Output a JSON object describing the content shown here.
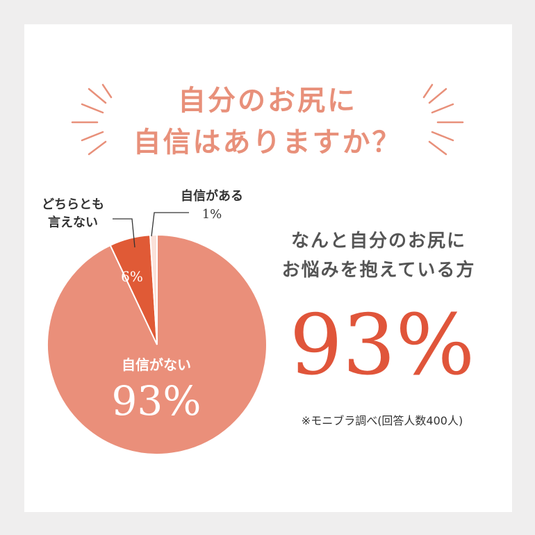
{
  "title": {
    "line1": "自分のお尻に",
    "line2": "自信はありますか？"
  },
  "headline": {
    "line1": "なんと自分のお尻に",
    "line2": "お悩みを抱えている方",
    "value": "93%"
  },
  "note": "※モニブラ調べ(回答人数400人)",
  "colors": {
    "title": "#e8907a",
    "accent": "#e0553a"
  },
  "chart_data": {
    "type": "pie",
    "start": "top",
    "direction": "counter-clockwise",
    "slices": [
      {
        "label": "自信がない",
        "value": 93,
        "value_label": "93%",
        "color": "#ea8f7a"
      },
      {
        "label": "どちらとも言えない",
        "label_lines": [
          "どちらとも",
          "言えない"
        ],
        "value": 6,
        "value_label": "6%",
        "color": "#e05a36"
      },
      {
        "label": "自信がある",
        "value": 1,
        "value_label": "1%",
        "color": "#fbe1d9"
      }
    ]
  }
}
